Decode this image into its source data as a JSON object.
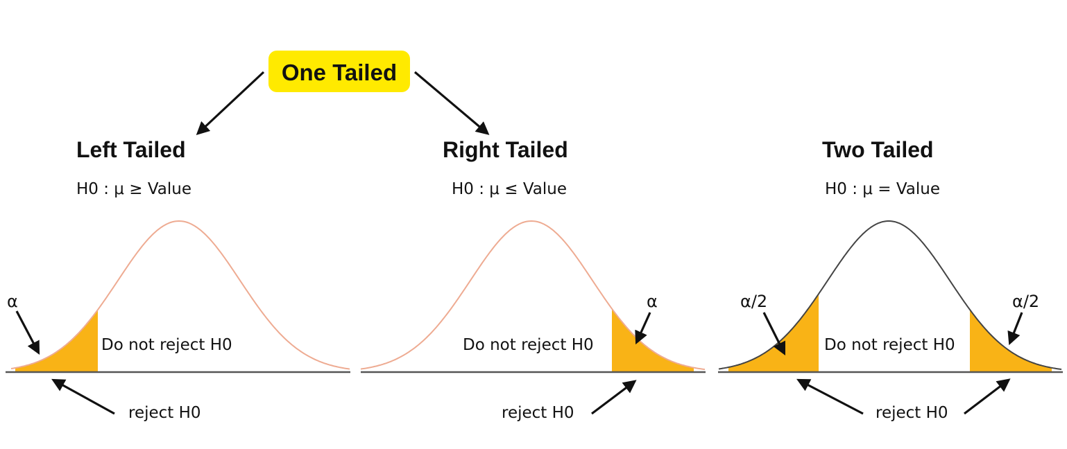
{
  "header": {
    "label": "One Tailed"
  },
  "colors": {
    "badge": "#ffea00",
    "tail_fill": "#f9b316",
    "curve_one_tailed": "#eeab92",
    "curve_two_tailed": "#444444"
  },
  "panels": [
    {
      "title": "Left Tailed",
      "hypothesis": "H0 : μ  ≥ Value",
      "alpha_labels": [
        "α"
      ],
      "region_label": "Do not reject H0",
      "reject_label": "reject H0"
    },
    {
      "title": "Right Tailed",
      "hypothesis": "H0 : μ ≤ Value",
      "alpha_labels": [
        "α"
      ],
      "region_label": "Do not reject H0",
      "reject_label": "reject H0"
    },
    {
      "title": "Two Tailed",
      "hypothesis": "H0 : μ = Value",
      "alpha_labels": [
        "α/2",
        "α/2"
      ],
      "region_label": "Do not reject H0",
      "reject_label": "reject H0"
    }
  ]
}
